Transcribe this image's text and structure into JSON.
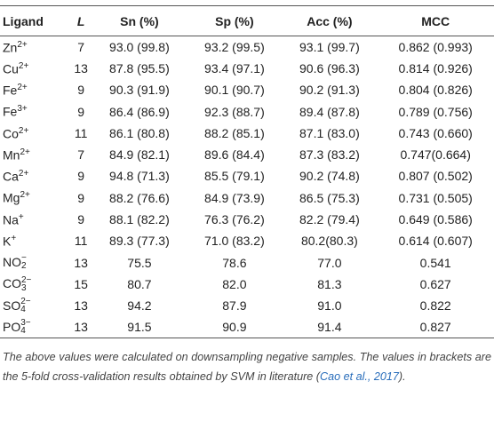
{
  "table": {
    "header": [
      "Ligand",
      "L",
      "Sn (%)",
      "Sp (%)",
      "Acc (%)",
      "MCC"
    ],
    "rows": [
      [
        {
          "base": "Zn",
          "sup": "2+"
        },
        7,
        "93.0 (99.8)",
        "93.2 (99.5)",
        "93.1 (99.7)",
        "0.862 (0.993)"
      ],
      [
        {
          "base": "Cu",
          "sup": "2+"
        },
        13,
        "87.8 (95.5)",
        "93.4 (97.1)",
        "90.6 (96.3)",
        "0.814 (0.926)"
      ],
      [
        {
          "base": "Fe",
          "sup": "2+"
        },
        9,
        "90.3 (91.9)",
        "90.1 (90.7)",
        "90.2 (91.3)",
        "0.804 (0.826)"
      ],
      [
        {
          "base": "Fe",
          "sup": "3+"
        },
        9,
        "86.4 (86.9)",
        "92.3 (88.7)",
        "89.4 (87.8)",
        "0.789 (0.756)"
      ],
      [
        {
          "base": "Co",
          "sup": "2+"
        },
        11,
        "86.1 (80.8)",
        "88.2 (85.1)",
        "87.1 (83.0)",
        "0.743 (0.660)"
      ],
      [
        {
          "base": "Mn",
          "sup": "2+"
        },
        7,
        "84.9 (82.1)",
        "89.6 (84.4)",
        "87.3 (83.2)",
        "0.747(0.664)"
      ],
      [
        {
          "base": "Ca",
          "sup": "2+"
        },
        9,
        "94.8 (71.3)",
        "85.5 (79.1)",
        "90.2 (74.8)",
        "0.807 (0.502)"
      ],
      [
        {
          "base": "Mg",
          "sup": "2+"
        },
        9,
        "88.2 (76.6)",
        "84.9 (73.9)",
        "86.5 (75.3)",
        "0.731 (0.505)"
      ],
      [
        {
          "base": "Na",
          "sup": "+"
        },
        9,
        "88.1 (82.2)",
        "76.3 (76.2)",
        "82.2 (79.4)",
        "0.649 (0.586)"
      ],
      [
        {
          "base": "K",
          "sup": "+"
        },
        11,
        "89.3 (77.3)",
        "71.0 (83.2)",
        "80.2(80.3)",
        "0.614 (0.607)"
      ],
      [
        {
          "base": "NO",
          "sub": "2",
          "sup": "−"
        },
        13,
        "75.5",
        "78.6",
        "77.0",
        "0.541"
      ],
      [
        {
          "base": "CO",
          "sub": "3",
          "sup": "2−"
        },
        15,
        "80.7",
        "82.0",
        "81.3",
        "0.627"
      ],
      [
        {
          "base": "SO",
          "sub": "4",
          "sup": "2−"
        },
        13,
        "94.2",
        "87.9",
        "91.0",
        "0.822"
      ],
      [
        {
          "base": "PO",
          "sub": "4",
          "sup": "3−"
        },
        13,
        "91.5",
        "90.9",
        "91.4",
        "0.827"
      ]
    ]
  },
  "footnote": {
    "text": "The above values were calculated on downsampling negative samples. The values in brackets are the 5-fold cross-validation results obtained by SVM in literature (",
    "citation": "Cao et al., 2017",
    "end": ")."
  }
}
